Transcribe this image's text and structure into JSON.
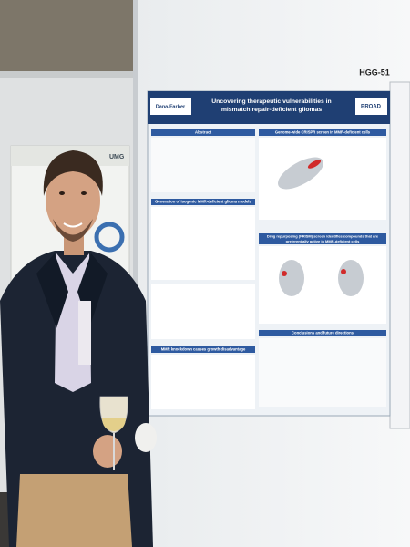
{
  "sign": "HGG-51",
  "poster": {
    "title_lines": [
      "Uncovering therapeutic vulnerabilities in",
      "mismatch repair-deficient gliomas"
    ],
    "logos": [
      "Dana-Farber",
      "BROAD"
    ],
    "sections": [
      [
        "Abstract"
      ],
      [
        "Genome-wide CRISPR screen in MMR-deficient cells"
      ],
      [
        "Generation of isogenic MMR-deficient glioma models"
      ],
      [
        "Drug repurposing (PRISM) screen identifies compounds that are",
        "preferentially active in MMR-deficient cells"
      ],
      [
        "MMR knockdown causes growth disadvantage"
      ],
      [
        "Conclusions and future directions"
      ]
    ]
  },
  "left_poster": {
    "logo": "UMG"
  }
}
